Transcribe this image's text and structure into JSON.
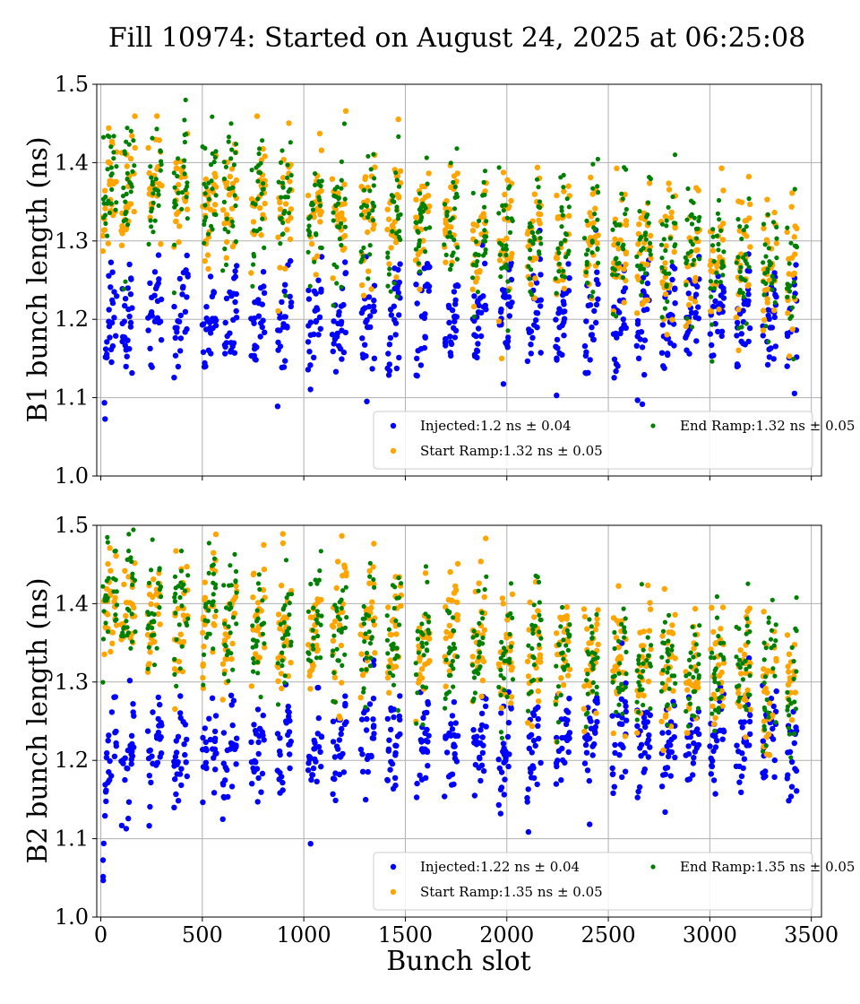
{
  "title": "Fill 10974: Started on August 24, 2025 at 06:25:08",
  "colors": {
    "injected": "#0000ff",
    "start_ramp": "#ffa500",
    "end_ramp": "#008000"
  },
  "chart_data": [
    {
      "type": "scatter",
      "ylabel": "B1 bunch length (ns)",
      "xlabel": "",
      "xlim": [
        -20,
        3550
      ],
      "ylim": [
        1.0,
        1.5
      ],
      "x_ticks": [
        0,
        500,
        1000,
        1500,
        2000,
        2500,
        3000,
        3500
      ],
      "x_tick_labels_visible": false,
      "y_ticks": [
        1.0,
        1.1,
        1.2,
        1.3,
        1.4,
        1.5
      ],
      "y_tick_labels": [
        "1.0",
        "1.1",
        "1.2",
        "1.3",
        "1.4",
        "1.5"
      ],
      "grid": true,
      "legend_position": "lower-right",
      "series": [
        {
          "key": "injected",
          "name": "Injected:1.2 ns ± 0.04",
          "mean": 1.2,
          "std": 0.04,
          "start_offset": -0.12,
          "trend": 0.0,
          "groups": [
            10,
            100,
            230,
            360,
            500,
            600,
            740,
            870,
            1020,
            1140,
            1280,
            1410,
            1550,
            1690,
            1830,
            1960,
            2100,
            2240,
            2380,
            2520,
            2640,
            2760,
            2880,
            3000,
            3130,
            3260,
            3380
          ]
        },
        {
          "key": "start_ramp",
          "name": "Start Ramp:1.32 ns ± 0.05",
          "mean": 1.32,
          "std": 0.05,
          "start_offset": 0.0,
          "trend": -0.11,
          "groups": [
            10,
            100,
            230,
            360,
            500,
            600,
            740,
            870,
            1020,
            1140,
            1280,
            1410,
            1550,
            1690,
            1830,
            1960,
            2100,
            2240,
            2380,
            2520,
            2640,
            2760,
            2880,
            3000,
            3130,
            3260,
            3380
          ]
        },
        {
          "key": "end_ramp",
          "name": "End Ramp:1.32 ns ± 0.05",
          "mean": 1.32,
          "std": 0.05,
          "start_offset": 0.0,
          "trend": -0.11,
          "groups": [
            10,
            100,
            230,
            360,
            500,
            600,
            740,
            870,
            1020,
            1140,
            1280,
            1410,
            1550,
            1690,
            1830,
            1960,
            2100,
            2240,
            2380,
            2520,
            2640,
            2760,
            2880,
            3000,
            3130,
            3260,
            3380
          ]
        }
      ]
    },
    {
      "type": "scatter",
      "ylabel": "B2 bunch length (ns)",
      "xlabel": "Bunch slot",
      "xlim": [
        -20,
        3550
      ],
      "ylim": [
        1.0,
        1.5
      ],
      "x_ticks": [
        0,
        500,
        1000,
        1500,
        2000,
        2500,
        3000,
        3500
      ],
      "x_tick_labels": [
        "0",
        "500",
        "1000",
        "1500",
        "2000",
        "2500",
        "3000",
        "3500"
      ],
      "y_ticks": [
        1.0,
        1.1,
        1.2,
        1.3,
        1.4,
        1.5
      ],
      "y_tick_labels": [
        "1.0",
        "1.1",
        "1.2",
        "1.3",
        "1.4",
        "1.5"
      ],
      "grid": true,
      "legend_position": "lower-right",
      "series": [
        {
          "key": "injected",
          "name": "Injected:1.22 ns ± 0.04",
          "mean": 1.22,
          "std": 0.04,
          "start_offset": -0.14,
          "trend": 0.02,
          "groups": [
            10,
            100,
            230,
            360,
            500,
            600,
            740,
            870,
            1020,
            1140,
            1280,
            1410,
            1550,
            1690,
            1830,
            1960,
            2100,
            2240,
            2380,
            2520,
            2640,
            2760,
            2880,
            3000,
            3130,
            3260,
            3380
          ]
        },
        {
          "key": "start_ramp",
          "name": "Start Ramp:1.35 ns ± 0.05",
          "mean": 1.35,
          "std": 0.05,
          "start_offset": 0.0,
          "trend": -0.1,
          "groups": [
            10,
            100,
            230,
            360,
            500,
            600,
            740,
            870,
            1020,
            1140,
            1280,
            1410,
            1550,
            1690,
            1830,
            1960,
            2100,
            2240,
            2380,
            2520,
            2640,
            2760,
            2880,
            3000,
            3130,
            3260,
            3380
          ]
        },
        {
          "key": "end_ramp",
          "name": "End Ramp:1.35 ns ± 0.05",
          "mean": 1.35,
          "std": 0.05,
          "start_offset": 0.0,
          "trend": -0.1,
          "groups": [
            10,
            100,
            230,
            360,
            500,
            600,
            740,
            870,
            1020,
            1140,
            1280,
            1410,
            1550,
            1690,
            1830,
            1960,
            2100,
            2240,
            2380,
            2520,
            2640,
            2760,
            2880,
            3000,
            3130,
            3260,
            3380
          ]
        }
      ]
    }
  ]
}
